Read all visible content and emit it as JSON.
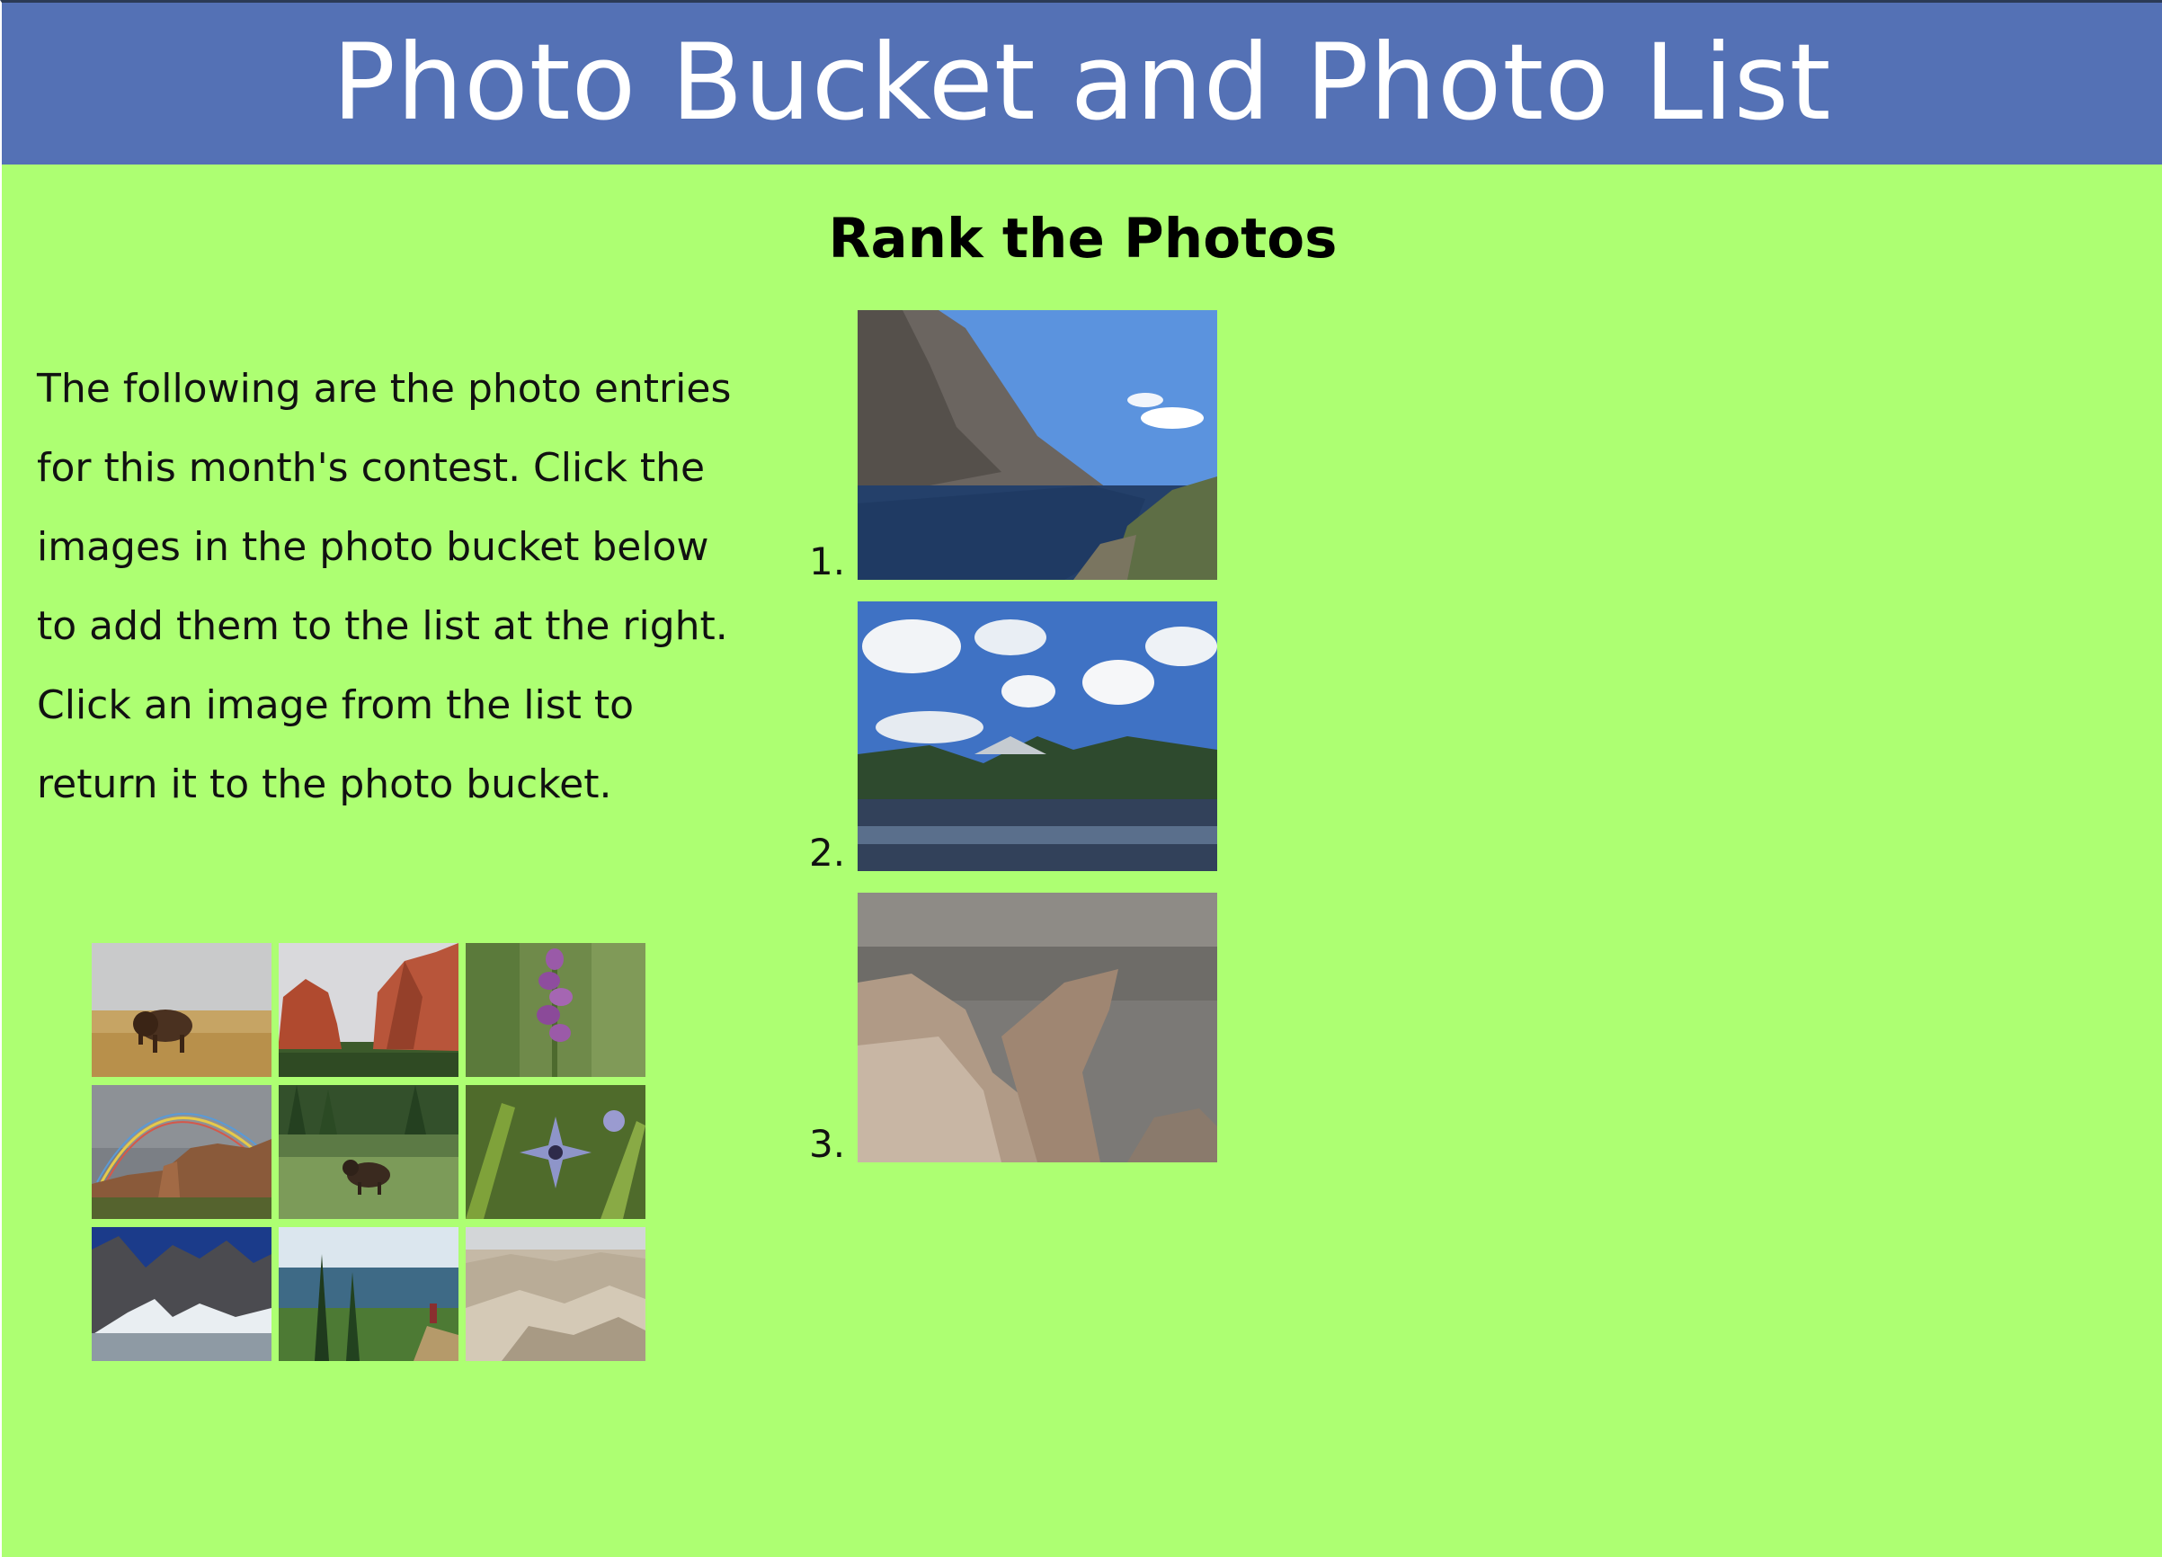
{
  "header": {
    "title": "Photo Bucket and Photo List"
  },
  "rank": {
    "heading": "Rank the Photos",
    "items": [
      {
        "number": "1.",
        "photo_icon": "mountain-lake-cliff-photo"
      },
      {
        "number": "2.",
        "photo_icon": "lake-clouds-reflection-photo"
      },
      {
        "number": "3.",
        "photo_icon": "rock-outcrop-canyon-photo"
      }
    ]
  },
  "intro": {
    "text": "The following are the photo entries for this month's contest. Click the images in the photo bucket below to add them to the list at the right. Click an image from the list to return it to the photo bucket."
  },
  "bucket": {
    "photos": [
      {
        "icon": "bison-prairie-photo"
      },
      {
        "icon": "red-rock-formations-photo"
      },
      {
        "icon": "purple-wildflower-photo"
      },
      {
        "icon": "rainbow-canyon-photo"
      },
      {
        "icon": "moose-meadow-photo"
      },
      {
        "icon": "blue-star-flower-photo"
      },
      {
        "icon": "snowy-mountain-lake-photo"
      },
      {
        "icon": "forest-trail-hiker-photo"
      },
      {
        "icon": "badlands-photo"
      }
    ]
  },
  "colors": {
    "header_bg": "#5471b5",
    "page_bg": "#adff72",
    "header_text": "#ffffff"
  }
}
